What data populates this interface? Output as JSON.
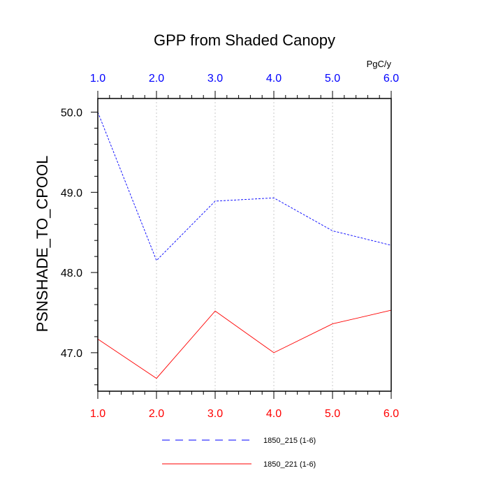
{
  "chart_data": {
    "type": "line",
    "title": "GPP from Shaded Canopy",
    "ylabel": "PSNSHADE_TO_CPOOL",
    "units": "PgC/y",
    "x": [
      1,
      2,
      3,
      4,
      5,
      6
    ],
    "xlim": [
      1,
      6
    ],
    "ylim": [
      46.52,
      50.17
    ],
    "x_ticks": [
      1,
      2,
      3,
      4,
      5,
      6
    ],
    "x_tick_labels": [
      "1.0",
      "2.0",
      "3.0",
      "4.0",
      "5.0",
      "6.0"
    ],
    "y_ticks": [
      47,
      48,
      49,
      50
    ],
    "y_tick_labels": [
      "47.0",
      "48.0",
      "49.0",
      "50.0"
    ],
    "top_axis_color": "#0000ff",
    "bottom_axis_color": "#ff0000",
    "grid": "vertical dotted",
    "legend_placement": "bottom",
    "series": [
      {
        "name": "1850_215 (1-6)",
        "color": "#0000ff",
        "dash": "dashed",
        "values": [
          50.0,
          48.15,
          48.89,
          48.93,
          48.52,
          48.34
        ]
      },
      {
        "name": "1850_221 (1-6)",
        "color": "#ff0000",
        "dash": "solid",
        "values": [
          47.17,
          46.68,
          47.52,
          47.0,
          47.36,
          47.53
        ]
      }
    ]
  }
}
